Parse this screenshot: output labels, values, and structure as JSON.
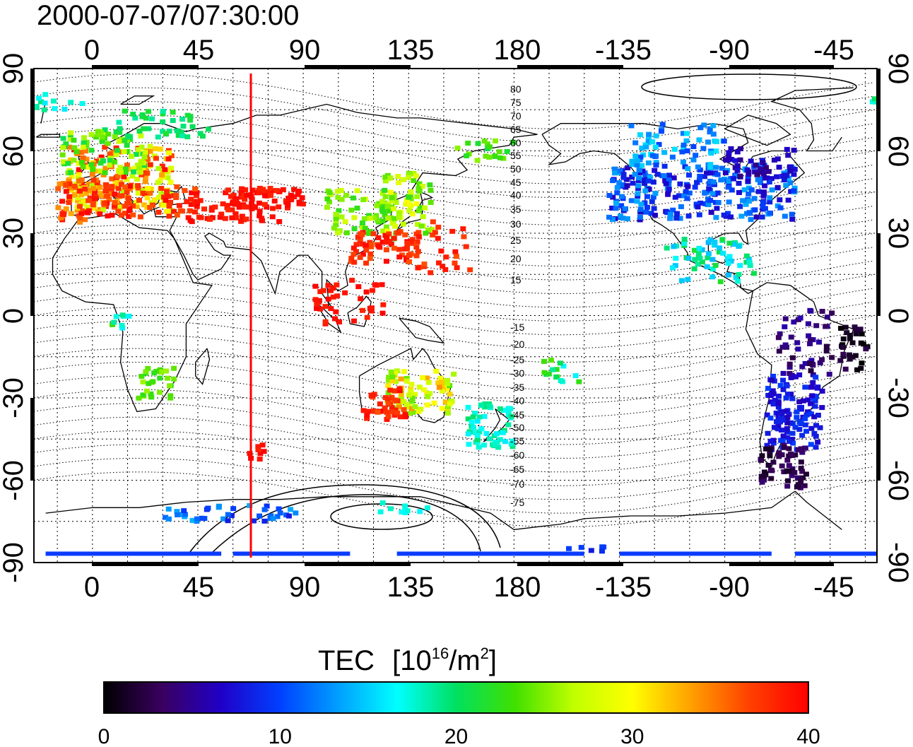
{
  "timestamp": "2000-07-07/07:30:00",
  "map": {
    "top_lon_ticks": [
      "0",
      "45",
      "90",
      "135",
      "180",
      "-135",
      "-90",
      "-45"
    ],
    "bottom_lon_ticks": [
      "0",
      "45",
      "90",
      "135",
      "180",
      "-135",
      "-90",
      "-45"
    ],
    "left_lat_ticks": [
      "90",
      "60",
      "30",
      "0",
      "-30",
      "-60",
      "-90"
    ],
    "right_lat_ticks": [
      "90",
      "60",
      "30",
      "0",
      "-30",
      "-60",
      "-90"
    ],
    "contour_labels": [
      "80",
      "75",
      "70",
      "65",
      "60",
      "55",
      "50",
      "45",
      "40",
      "35",
      "30",
      "25",
      "20",
      "15",
      "-15",
      "-20",
      "-25",
      "-30",
      "-35",
      "-40",
      "-45",
      "-50",
      "-55",
      "-60",
      "-65",
      "-70",
      "-75"
    ],
    "meridian_line_color": "#ff0000"
  },
  "colorbar": {
    "label": "TEC",
    "unit_text": "[10",
    "unit_exp": "16",
    "unit_mid": "/m",
    "unit_exp2": "2",
    "unit_close": "]",
    "ticks": [
      "0",
      "10",
      "20",
      "30",
      "40"
    ],
    "stops": [
      "#000000",
      "#3a0060",
      "#2000c8",
      "#0040ff",
      "#00a0ff",
      "#00ffff",
      "#00e060",
      "#40e000",
      "#c0ff00",
      "#ffff00",
      "#ffa000",
      "#ff4000",
      "#ff0000"
    ]
  }
}
